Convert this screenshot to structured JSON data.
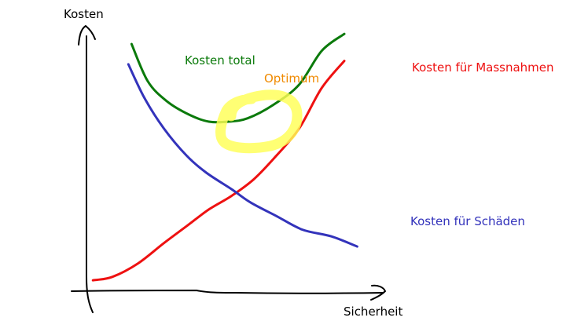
{
  "chart_data": {
    "type": "line",
    "title": "",
    "xlabel": "Sicherheit",
    "ylabel": "Kosten",
    "grid": false,
    "legend": "direct labels next to curves",
    "colors": {
      "total": "#0b7a0b",
      "damage": "#3333bb",
      "measures": "#ee1111",
      "optimum_text": "#f08a00",
      "optimum_highlight": "#ffff55"
    },
    "series": [
      {
        "name": "Kosten total",
        "color": "#0b7a0b",
        "points": [
          [
            0.14,
            0.73
          ],
          [
            0.19,
            0.62
          ],
          [
            0.25,
            0.56
          ],
          [
            0.32,
            0.52
          ],
          [
            0.38,
            0.5
          ],
          [
            0.44,
            0.5
          ],
          [
            0.5,
            0.51
          ],
          [
            0.58,
            0.55
          ],
          [
            0.66,
            0.61
          ],
          [
            0.73,
            0.71
          ],
          [
            0.8,
            0.76
          ]
        ]
      },
      {
        "name": "Kosten für Schäden",
        "color": "#3333bb",
        "points": [
          [
            0.13,
            0.67
          ],
          [
            0.18,
            0.57
          ],
          [
            0.24,
            0.48
          ],
          [
            0.31,
            0.4
          ],
          [
            0.37,
            0.35
          ],
          [
            0.45,
            0.3
          ],
          [
            0.51,
            0.26
          ],
          [
            0.59,
            0.22
          ],
          [
            0.67,
            0.18
          ],
          [
            0.76,
            0.16
          ],
          [
            0.84,
            0.13
          ]
        ]
      },
      {
        "name": "Kosten für Massnahmen",
        "color": "#ee1111",
        "points": [
          [
            0.02,
            0.03
          ],
          [
            0.08,
            0.04
          ],
          [
            0.16,
            0.08
          ],
          [
            0.24,
            0.14
          ],
          [
            0.31,
            0.19
          ],
          [
            0.38,
            0.24
          ],
          [
            0.45,
            0.28
          ],
          [
            0.52,
            0.33
          ],
          [
            0.59,
            0.4
          ],
          [
            0.66,
            0.48
          ],
          [
            0.73,
            0.6
          ],
          [
            0.8,
            0.68
          ]
        ]
      }
    ],
    "annotations": [
      {
        "text": "Optimum",
        "marks": "Kosten total",
        "at": [
          0.42,
          0.5
        ]
      }
    ]
  }
}
